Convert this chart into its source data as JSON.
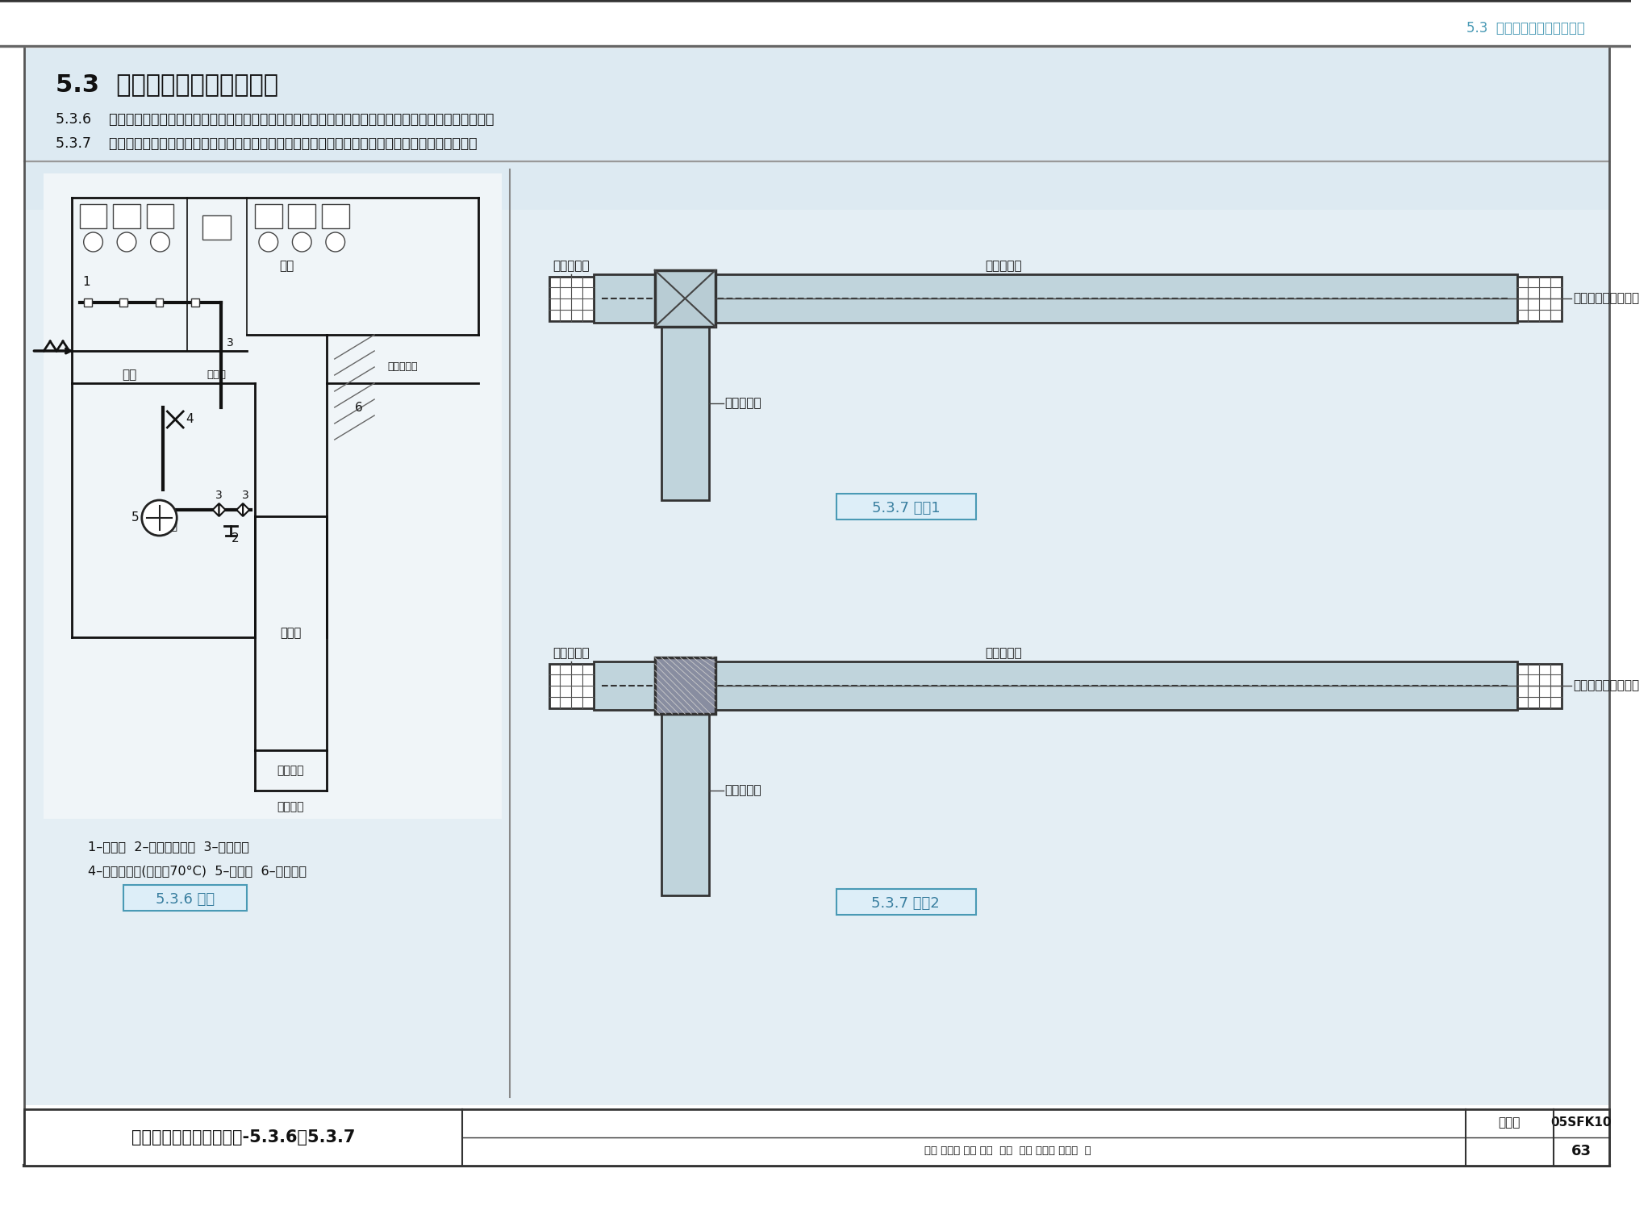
{
  "page_bg": "#ffffff",
  "header_bg": "#cce4ee",
  "title_text": "5.3  平战结合及平战功能转换",
  "header_top_text": "5.3  平战结合及平战功能转换",
  "rule_536": "5.3.6    防空地下室内的厕所、盥洗室、污水泵房等排风房间，宜按防护单元单独设置排风系统，且宜平战两用。",
  "rule_537": "5.3.7    防空地下室战时的通风管道及风口应尽量利用平时的通风管道及风口，但应在接口处设置转换阀门。",
  "caption_536": "5.3.6 图示",
  "caption_537_1": "5.3.7 图示1",
  "caption_537_2": "5.3.7 图示2",
  "legend_line1": "1–排风口  2–自动排气活门  3–密闭阀门",
  "legend_line2": "4–防火调节阀(常开，70°C)  5–排风机  6–通风短管",
  "label_nantce": "男厕",
  "label_nvce": "女厕",
  "label_xianshuishi": "盥洗室",
  "label_jianji": "简易洗消间",
  "label_paifengji": "排风机室",
  "label_fusanshi": "扩散室",
  "label_paifengsujing": "排风竖井",
  "label_pinshi_fengkou": "平时通风口",
  "label_pinshi_fengguan": "平时通风管",
  "label_zhanshi_fengguan": "战时通风管",
  "label_zhuanhuanfa": "平时预留接管转换阀",
  "label_manglan": "平时预留接管盲法兰",
  "footer_title": "平战结合及平战功能转换-5.3.6、5.3.7",
  "footer_label_tujiji": "图集号",
  "footer_tujiji_val": "05SFK10",
  "footer_sig": "审核 耿世彤 校对 完勇  茲多  设计 杨盛地 仍感佳  页",
  "footer_page": "63",
  "accent_color": "#4a9ab5",
  "blue_text": "#3a7fa0",
  "wall_color": "#111111",
  "bg_content": "#e8f2f7"
}
